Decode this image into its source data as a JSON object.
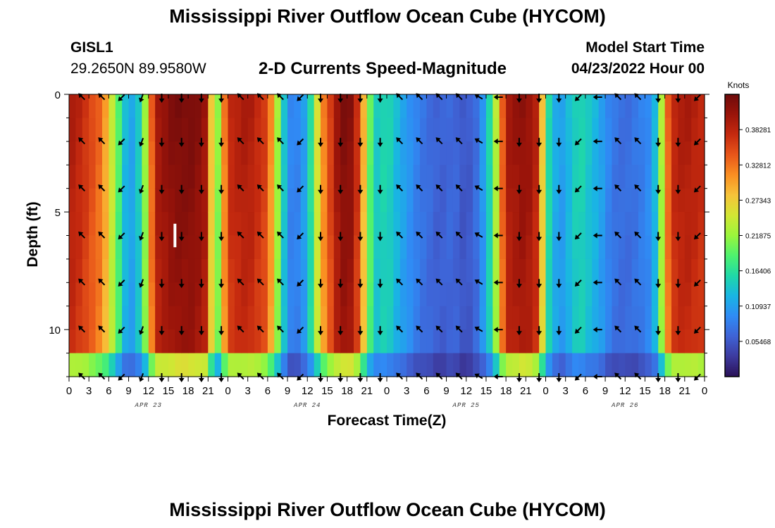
{
  "page": {
    "title": "Mississippi River Outflow Ocean Cube (HYCOM)",
    "title_repeat": "Mississippi River Outflow Ocean Cube (HYCOM)",
    "station": "GISL1",
    "coords": "29.2650N  89.9580W",
    "subtitle": "2-D Currents Speed-Magnitude",
    "model_start_label": "Model Start Time",
    "model_start_value": "04/23/2022 Hour 00"
  },
  "chart_data": {
    "type": "heatmap",
    "title": "2-D Currents Speed-Magnitude",
    "xlabel": "Forecast Time(Z)",
    "ylabel": "Depth (ft)",
    "x_hours_range": [
      0,
      96
    ],
    "y_depth_range_ft": [
      0,
      12
    ],
    "y_inverted": true,
    "x_tick_labels": [
      "0",
      "3",
      "6",
      "9",
      "12",
      "15",
      "18",
      "21",
      "0",
      "3",
      "6",
      "9",
      "12",
      "15",
      "18",
      "21",
      "0",
      "3",
      "6",
      "9",
      "12",
      "15",
      "18",
      "21",
      "0",
      "3",
      "6",
      "9",
      "12",
      "15",
      "18",
      "21",
      "0"
    ],
    "date_labels": [
      {
        "label": "APR 23",
        "hour": 12
      },
      {
        "label": "APR 24",
        "hour": 36
      },
      {
        "label": "APR 25",
        "hour": 60
      },
      {
        "label": "APR 26",
        "hour": 84
      }
    ],
    "y_tick_labels": [
      {
        "label": "0",
        "depth": 0
      },
      {
        "label": "5",
        "depth": 5
      },
      {
        "label": "10",
        "depth": 10
      }
    ],
    "colorbar": {
      "unit": "Knots",
      "range": [
        0.0,
        0.4375
      ],
      "labels": [
        "0.38281",
        "0.32812",
        "0.27343",
        "0.21875",
        "0.16406",
        "0.10937",
        "0.05468"
      ],
      "label_values": [
        0.38281,
        0.32812,
        0.27343,
        0.21875,
        0.16406,
        0.10937,
        0.05468
      ],
      "colors": [
        "#2a1157",
        "#3d3a9e",
        "#3f63d6",
        "#2f8bf5",
        "#19b5e3",
        "#1fd8a8",
        "#4ef26e",
        "#9af53c",
        "#d2e634",
        "#f6c33a",
        "#fa8f22",
        "#e8561a",
        "#c52a0f",
        "#9a140a",
        "#6e0b0b"
      ]
    },
    "depths_ft": [
      0,
      2,
      4,
      6,
      8,
      10,
      12
    ],
    "speed_profile_hours": [
      0,
      2,
      5,
      7,
      9,
      11,
      13,
      16,
      19,
      21,
      22,
      24,
      27,
      30,
      32,
      33,
      34,
      36,
      38,
      41,
      43,
      45,
      46,
      48,
      50,
      53,
      56,
      58,
      60,
      62,
      64,
      66,
      69,
      71,
      72,
      74,
      77,
      80,
      82,
      84,
      86,
      88,
      89,
      90,
      91,
      93,
      96
    ],
    "speed_profile_knots": [
      0.4,
      0.38,
      0.33,
      0.22,
      0.1,
      0.16,
      0.4,
      0.43,
      0.43,
      0.4,
      0.16,
      0.38,
      0.4,
      0.36,
      0.18,
      0.1,
      0.08,
      0.12,
      0.3,
      0.43,
      0.42,
      0.25,
      0.14,
      0.16,
      0.12,
      0.08,
      0.06,
      0.07,
      0.05,
      0.08,
      0.18,
      0.4,
      0.42,
      0.38,
      0.18,
      0.1,
      0.16,
      0.12,
      0.08,
      0.07,
      0.08,
      0.1,
      0.16,
      0.3,
      0.38,
      0.4,
      0.38
    ],
    "arrow_hours": [
      2,
      5,
      8,
      11,
      14,
      17,
      20,
      23,
      26,
      29,
      32,
      35,
      38,
      41,
      44,
      47,
      50,
      53,
      56,
      59,
      62,
      65,
      68,
      71,
      74,
      77,
      80,
      83,
      86,
      89,
      92,
      95
    ],
    "arrow_direction_deg": [
      315,
      315,
      225,
      200,
      180,
      180,
      180,
      180,
      315,
      315,
      315,
      225,
      180,
      180,
      180,
      180,
      315,
      315,
      315,
      315,
      300,
      270,
      180,
      180,
      180,
      225,
      270,
      315,
      315,
      180,
      180,
      225
    ],
    "annotation": {
      "hour": 16,
      "depth_from": 5.5,
      "depth_to": 6.5
    }
  }
}
